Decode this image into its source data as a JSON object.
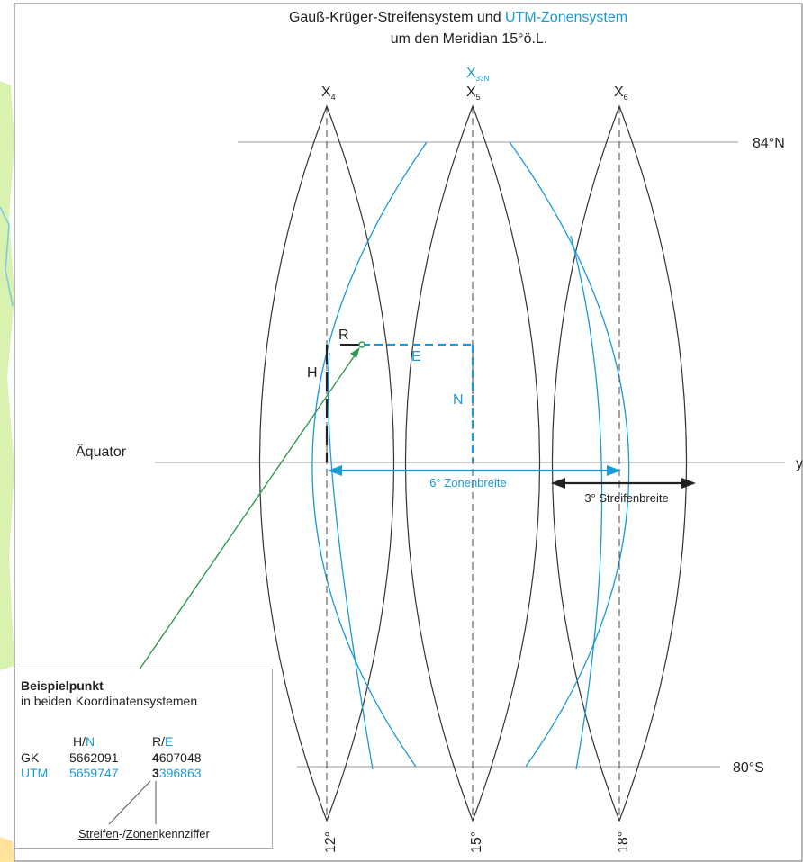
{
  "title": {
    "line1_part1": "Gauß-Krüger-Streifensystem und ",
    "line1_part2": "UTM-Zonensystem",
    "line2": "um den Meridian 15°ö.L."
  },
  "meridians": [
    {
      "label": "X",
      "sub": "4",
      "deg": "12°"
    },
    {
      "label": "X",
      "sub": "5",
      "deg": "15°"
    },
    {
      "label": "X",
      "sub": "6",
      "deg": "18°"
    }
  ],
  "utm_meridian": {
    "label": "X",
    "sub": "33N"
  },
  "lines": {
    "north": "84°N",
    "south": "80°S",
    "equator": "Äquator",
    "y_axis": "y"
  },
  "point_labels": {
    "R": "R",
    "H": "H",
    "E": "E",
    "N": "N"
  },
  "widths": {
    "zone": "6° Zonenbreite",
    "strip": "3° Streifenbreite"
  },
  "legend": {
    "title": "Beispielpunkt",
    "subtitle": "in beiden Koordinatensystemen",
    "col1_a": "H/",
    "col1_b": "N",
    "col2_a": "R/",
    "col2_b": "E",
    "gk": {
      "name": "GK",
      "h": "5662091",
      "r_lead": "4",
      "r_rest": "607048"
    },
    "utm": {
      "name": "UTM",
      "n": "5659747",
      "e_lead": "3",
      "e_rest": "396863"
    },
    "footer_a": "Streifen",
    "footer_b": "-/",
    "footer_c": "Zonen",
    "footer_d": "kennziffer"
  },
  "colors": {
    "blue": "#1a9ad6",
    "green": "#2e9a52",
    "black": "#222222"
  }
}
